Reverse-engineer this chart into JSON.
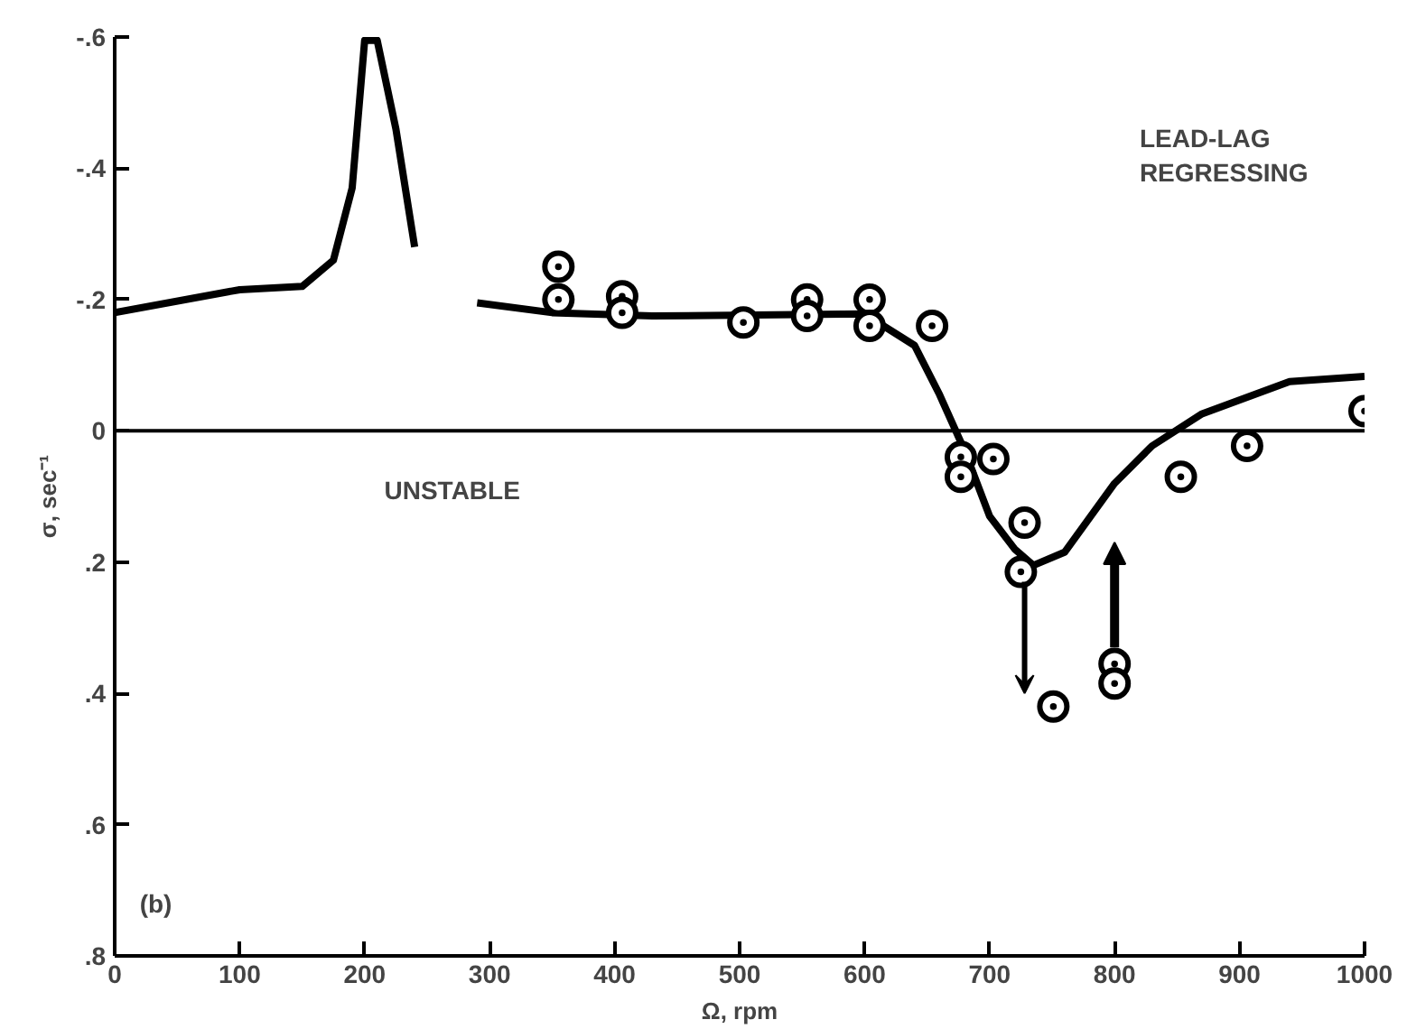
{
  "chart_data": {
    "type": "line",
    "xlabel": "Ω, rpm",
    "ylabel": "σ, sec⁻¹",
    "xlim": [
      0,
      1000
    ],
    "ylim": [
      0.8,
      -0.6
    ],
    "xticks": [
      0,
      100,
      200,
      300,
      400,
      500,
      600,
      700,
      800,
      900,
      1000
    ],
    "yticks": [
      {
        "value": -0.6,
        "label": "-.6"
      },
      {
        "value": -0.4,
        "label": "-.4"
      },
      {
        "value": -0.2,
        "label": "-.2"
      },
      0,
      {
        "value": 0.2,
        "label": ".2"
      },
      {
        "value": 0.4,
        "label": ".4"
      },
      {
        "value": 0.6,
        "label": ".6"
      },
      {
        "value": 0.8,
        "label": ".8"
      }
    ],
    "grid": false,
    "series": [
      {
        "color": "#000000",
        "x": [
          0,
          100,
          150,
          175,
          190,
          200,
          210,
          225,
          240
        ],
        "values": [
          -0.18,
          -0.215,
          -0.22,
          -0.26,
          -0.37,
          -0.595,
          -0.595,
          -0.46,
          -0.28
        ]
      },
      {
        "color": "#000000",
        "x": [
          290,
          350,
          430,
          600,
          640,
          660,
          680,
          700,
          720,
          735,
          760,
          800,
          830,
          870,
          940,
          1000
        ],
        "values": [
          -0.195,
          -0.18,
          -0.175,
          -0.178,
          -0.13,
          -0.055,
          0.03,
          0.13,
          0.18,
          0.205,
          0.185,
          0.08,
          0.023,
          -0.026,
          -0.075,
          -0.083
        ]
      },
      {
        "type": "scatter",
        "color": "#000000",
        "marker": "circle",
        "x": [
          355,
          355,
          406,
          406,
          503,
          554,
          554,
          604,
          604,
          654,
          677,
          677,
          703,
          728,
          725,
          751,
          800,
          800,
          853,
          906,
          1000
        ],
        "values": [
          -0.25,
          -0.2,
          -0.205,
          -0.18,
          -0.165,
          -0.2,
          -0.175,
          -0.2,
          -0.16,
          -0.16,
          0.04,
          0.07,
          0.043,
          0.14,
          0.215,
          0.42,
          0.355,
          0.385,
          0.07,
          0.023,
          -0.03
        ]
      }
    ],
    "ref_lines": [
      {
        "axis": "y",
        "value": 0,
        "color": "#000000"
      }
    ],
    "annotations": [
      "LEAD-LAG\nREGRESSING",
      "UNSTABLE",
      "(b)"
    ]
  }
}
